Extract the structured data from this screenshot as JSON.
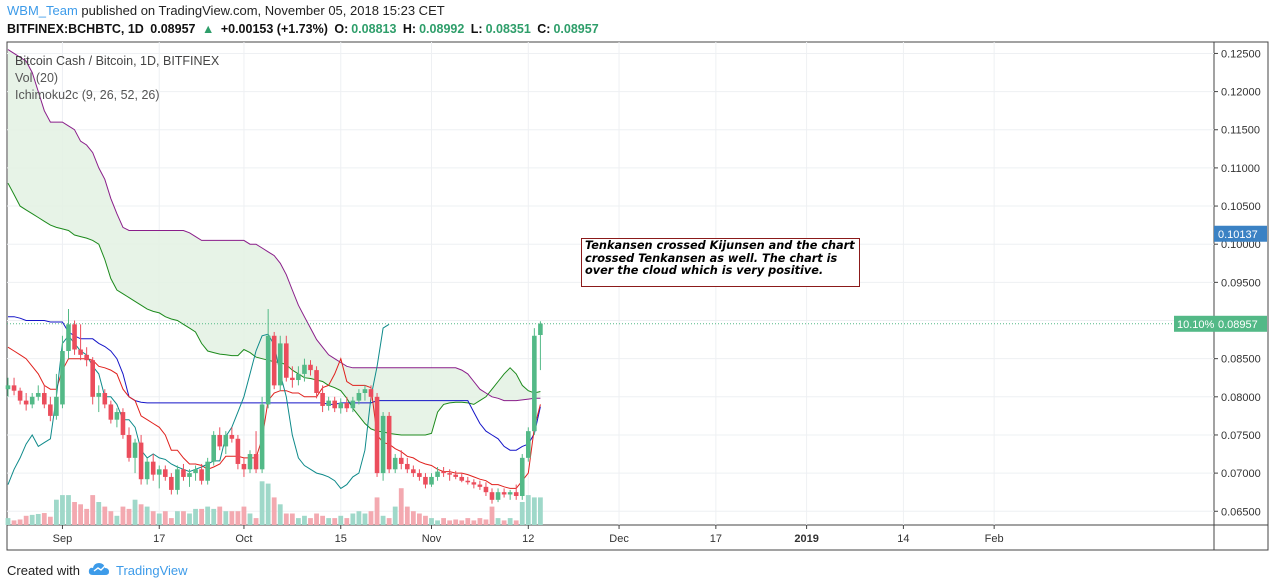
{
  "header": {
    "user": "WBM_Team",
    "published": "published on TradingView.com, November 05, 2018 15:23 CET"
  },
  "quote": {
    "symbol": "BITFINEX:BCHBTC, 1D",
    "last": "0.08957",
    "arrow": "▲",
    "change": "+0.00153 (+1.73%)",
    "o_label": "O:",
    "o": "0.08813",
    "h_label": "H:",
    "h": "0.08992",
    "l_label": "L:",
    "l": "0.08351",
    "c_label": "C:",
    "c": "0.08957"
  },
  "legend": {
    "title": "Bitcoin Cash / Bitcoin, 1D, BITFINEX",
    "vol": "Vol (20)",
    "ichimoku": "Ichimoku2c (9, 26, 52, 26)"
  },
  "annotation": "Tenkansen crossed Kijunsen and the chart crossed Tenkansen as well. The chart is over the cloud which is very positive.",
  "footer": {
    "created": "Created with",
    "brand": "TradingView"
  },
  "colors": {
    "up": "#53b987",
    "down": "#eb4d5c",
    "vol_up": "#9fd8c9",
    "vol_down": "#f3a9b0",
    "tenkan": "#e0201c",
    "kijun": "#1515c8",
    "chikou": "#0e8a8a",
    "span_a": "#1c8a1c",
    "span_b": "#8a1e8a",
    "cloud": "#e3f1e3",
    "price_tag": "#53b987",
    "level_tag": "#3b82c4"
  },
  "chart_data": {
    "type": "candlestick",
    "y_ticks": [
      "0.12500",
      "0.12000",
      "0.11500",
      "0.11000",
      "0.10500",
      "0.10000",
      "0.09500",
      "0.09000",
      "0.08500",
      "0.08000",
      "0.07500",
      "0.07000",
      "0.06500"
    ],
    "ylim": [
      0.0632,
      0.1265
    ],
    "x_ticks": [
      "Sep",
      "17",
      "Oct",
      "15",
      "Nov",
      "12",
      "Dec",
      "17",
      "2019",
      "14",
      "Feb"
    ],
    "x_tick_days": [
      9,
      25,
      39,
      55,
      70,
      86,
      101,
      117,
      132,
      148,
      163
    ],
    "price_tag": {
      "pct": "10.10%",
      "value": "0.08957"
    },
    "level_tag": {
      "value": "0.10137"
    },
    "candles": [
      {
        "o": 0.081,
        "h": 0.0825,
        "l": 0.08,
        "c": 0.0815
      },
      {
        "o": 0.0815,
        "h": 0.0825,
        "l": 0.0802,
        "c": 0.0808
      },
      {
        "o": 0.0808,
        "h": 0.0812,
        "l": 0.079,
        "c": 0.0795
      },
      {
        "o": 0.0795,
        "h": 0.0805,
        "l": 0.0782,
        "c": 0.079
      },
      {
        "o": 0.079,
        "h": 0.0805,
        "l": 0.0785,
        "c": 0.08
      },
      {
        "o": 0.08,
        "h": 0.0815,
        "l": 0.0795,
        "c": 0.0805
      },
      {
        "o": 0.0805,
        "h": 0.0815,
        "l": 0.0785,
        "c": 0.079
      },
      {
        "o": 0.079,
        "h": 0.08,
        "l": 0.0768,
        "c": 0.0775
      },
      {
        "o": 0.0775,
        "h": 0.083,
        "l": 0.077,
        "c": 0.08
      },
      {
        "o": 0.079,
        "h": 0.088,
        "l": 0.0785,
        "c": 0.086
      },
      {
        "o": 0.086,
        "h": 0.0915,
        "l": 0.085,
        "c": 0.0895
      },
      {
        "o": 0.0895,
        "h": 0.09,
        "l": 0.0855,
        "c": 0.0862
      },
      {
        "o": 0.0862,
        "h": 0.0895,
        "l": 0.0848,
        "c": 0.0855
      },
      {
        "o": 0.0855,
        "h": 0.0865,
        "l": 0.084,
        "c": 0.0848
      },
      {
        "o": 0.0848,
        "h": 0.0852,
        "l": 0.079,
        "c": 0.08
      },
      {
        "o": 0.08,
        "h": 0.0815,
        "l": 0.078,
        "c": 0.0805
      },
      {
        "o": 0.0805,
        "h": 0.081,
        "l": 0.0785,
        "c": 0.079
      },
      {
        "o": 0.079,
        "h": 0.0795,
        "l": 0.0765,
        "c": 0.077
      },
      {
        "o": 0.077,
        "h": 0.0785,
        "l": 0.076,
        "c": 0.078
      },
      {
        "o": 0.078,
        "h": 0.0785,
        "l": 0.0745,
        "c": 0.075
      },
      {
        "o": 0.075,
        "h": 0.076,
        "l": 0.0715,
        "c": 0.072
      },
      {
        "o": 0.072,
        "h": 0.0745,
        "l": 0.07,
        "c": 0.074
      },
      {
        "o": 0.074,
        "h": 0.075,
        "l": 0.0685,
        "c": 0.0692
      },
      {
        "o": 0.0692,
        "h": 0.072,
        "l": 0.0685,
        "c": 0.0715
      },
      {
        "o": 0.0715,
        "h": 0.0725,
        "l": 0.069,
        "c": 0.0698
      },
      {
        "o": 0.0698,
        "h": 0.071,
        "l": 0.068,
        "c": 0.0705
      },
      {
        "o": 0.0705,
        "h": 0.071,
        "l": 0.069,
        "c": 0.0695
      },
      {
        "o": 0.0695,
        "h": 0.07,
        "l": 0.0672,
        "c": 0.0678
      },
      {
        "o": 0.0678,
        "h": 0.071,
        "l": 0.0672,
        "c": 0.0705
      },
      {
        "o": 0.0705,
        "h": 0.0712,
        "l": 0.069,
        "c": 0.0695
      },
      {
        "o": 0.0695,
        "h": 0.0705,
        "l": 0.0682,
        "c": 0.07
      },
      {
        "o": 0.07,
        "h": 0.071,
        "l": 0.069,
        "c": 0.0705
      },
      {
        "o": 0.0705,
        "h": 0.0712,
        "l": 0.0685,
        "c": 0.069
      },
      {
        "o": 0.069,
        "h": 0.072,
        "l": 0.0685,
        "c": 0.0715
      },
      {
        "o": 0.0715,
        "h": 0.0755,
        "l": 0.071,
        "c": 0.075
      },
      {
        "o": 0.075,
        "h": 0.076,
        "l": 0.073,
        "c": 0.0735
      },
      {
        "o": 0.0735,
        "h": 0.0755,
        "l": 0.0725,
        "c": 0.075
      },
      {
        "o": 0.075,
        "h": 0.076,
        "l": 0.074,
        "c": 0.0745
      },
      {
        "o": 0.0745,
        "h": 0.075,
        "l": 0.0705,
        "c": 0.0712
      },
      {
        "o": 0.0712,
        "h": 0.072,
        "l": 0.0695,
        "c": 0.0705
      },
      {
        "o": 0.0705,
        "h": 0.073,
        "l": 0.07,
        "c": 0.0725
      },
      {
        "o": 0.0725,
        "h": 0.0755,
        "l": 0.07,
        "c": 0.0705
      },
      {
        "o": 0.0705,
        "h": 0.08,
        "l": 0.07,
        "c": 0.079
      },
      {
        "o": 0.079,
        "h": 0.0915,
        "l": 0.0785,
        "c": 0.088
      },
      {
        "o": 0.088,
        "h": 0.0885,
        "l": 0.081,
        "c": 0.0815
      },
      {
        "o": 0.0815,
        "h": 0.088,
        "l": 0.0808,
        "c": 0.087
      },
      {
        "o": 0.087,
        "h": 0.088,
        "l": 0.082,
        "c": 0.0825
      },
      {
        "o": 0.0825,
        "h": 0.084,
        "l": 0.0812,
        "c": 0.0822
      },
      {
        "o": 0.0822,
        "h": 0.084,
        "l": 0.0815,
        "c": 0.083
      },
      {
        "o": 0.083,
        "h": 0.085,
        "l": 0.082,
        "c": 0.0842
      },
      {
        "o": 0.0842,
        "h": 0.0848,
        "l": 0.0828,
        "c": 0.0835
      },
      {
        "o": 0.0835,
        "h": 0.084,
        "l": 0.0798,
        "c": 0.0805
      },
      {
        "o": 0.0805,
        "h": 0.0815,
        "l": 0.078,
        "c": 0.0788
      },
      {
        "o": 0.0788,
        "h": 0.08,
        "l": 0.0782,
        "c": 0.0795
      },
      {
        "o": 0.0795,
        "h": 0.08,
        "l": 0.078,
        "c": 0.0785
      },
      {
        "o": 0.0785,
        "h": 0.0798,
        "l": 0.0778,
        "c": 0.0792
      },
      {
        "o": 0.0792,
        "h": 0.08,
        "l": 0.078,
        "c": 0.0785
      },
      {
        "o": 0.0785,
        "h": 0.08,
        "l": 0.078,
        "c": 0.0795
      },
      {
        "o": 0.0795,
        "h": 0.081,
        "l": 0.079,
        "c": 0.0805
      },
      {
        "o": 0.0805,
        "h": 0.0815,
        "l": 0.0795,
        "c": 0.081
      },
      {
        "o": 0.081,
        "h": 0.0815,
        "l": 0.0795,
        "c": 0.08
      },
      {
        "o": 0.08,
        "h": 0.0805,
        "l": 0.0695,
        "c": 0.07
      },
      {
        "o": 0.07,
        "h": 0.078,
        "l": 0.069,
        "c": 0.0775
      },
      {
        "o": 0.0775,
        "h": 0.078,
        "l": 0.07,
        "c": 0.0705
      },
      {
        "o": 0.0705,
        "h": 0.0725,
        "l": 0.07,
        "c": 0.072
      },
      {
        "o": 0.072,
        "h": 0.073,
        "l": 0.0705,
        "c": 0.0712
      },
      {
        "o": 0.0712,
        "h": 0.072,
        "l": 0.07,
        "c": 0.0705
      },
      {
        "o": 0.0705,
        "h": 0.071,
        "l": 0.0695,
        "c": 0.07
      },
      {
        "o": 0.07,
        "h": 0.0705,
        "l": 0.069,
        "c": 0.0695
      },
      {
        "o": 0.0695,
        "h": 0.07,
        "l": 0.068,
        "c": 0.0685
      },
      {
        "o": 0.0685,
        "h": 0.07,
        "l": 0.0682,
        "c": 0.0695
      },
      {
        "o": 0.0695,
        "h": 0.0708,
        "l": 0.069,
        "c": 0.0702
      },
      {
        "o": 0.0702,
        "h": 0.0708,
        "l": 0.0695,
        "c": 0.07
      },
      {
        "o": 0.07,
        "h": 0.0705,
        "l": 0.069,
        "c": 0.0698
      },
      {
        "o": 0.0698,
        "h": 0.0703,
        "l": 0.0692,
        "c": 0.0695
      },
      {
        "o": 0.0695,
        "h": 0.07,
        "l": 0.0688,
        "c": 0.069
      },
      {
        "o": 0.069,
        "h": 0.0695,
        "l": 0.0685,
        "c": 0.0688
      },
      {
        "o": 0.0688,
        "h": 0.0692,
        "l": 0.068,
        "c": 0.0685
      },
      {
        "o": 0.0685,
        "h": 0.069,
        "l": 0.0678,
        "c": 0.0682
      },
      {
        "o": 0.0682,
        "h": 0.0688,
        "l": 0.067,
        "c": 0.0675
      },
      {
        "o": 0.0675,
        "h": 0.068,
        "l": 0.066,
        "c": 0.0665
      },
      {
        "o": 0.0665,
        "h": 0.068,
        "l": 0.0662,
        "c": 0.0675
      },
      {
        "o": 0.0675,
        "h": 0.068,
        "l": 0.0668,
        "c": 0.0672
      },
      {
        "o": 0.0672,
        "h": 0.0678,
        "l": 0.0665,
        "c": 0.0675
      },
      {
        "o": 0.0675,
        "h": 0.0685,
        "l": 0.0665,
        "c": 0.067
      },
      {
        "o": 0.067,
        "h": 0.0725,
        "l": 0.0665,
        "c": 0.072
      },
      {
        "o": 0.072,
        "h": 0.076,
        "l": 0.0715,
        "c": 0.0755
      },
      {
        "o": 0.0755,
        "h": 0.089,
        "l": 0.075,
        "c": 0.088
      },
      {
        "o": 0.0881,
        "h": 0.0899,
        "l": 0.0835,
        "c": 0.0896
      }
    ],
    "volume": [
      1.5,
      1.0,
      1.2,
      2.0,
      2.2,
      2.4,
      2.6,
      1.8,
      5.5,
      6.5,
      6.5,
      5.0,
      4.5,
      3.5,
      6.5,
      5.0,
      4.0,
      3.0,
      2.0,
      4.0,
      3.5,
      5.5,
      4.5,
      4.0,
      3.0,
      2.5,
      3.0,
      1.5,
      3.0,
      3.0,
      2.5,
      3.5,
      3.5,
      4.0,
      3.5,
      4.0,
      3.0,
      3.0,
      3.0,
      4.0,
      2.5,
      1.5,
      9.5,
      9.0,
      6.0,
      4.5,
      2.5,
      2.5,
      1.5,
      2.0,
      1.5,
      2.5,
      2.0,
      1.5,
      1.5,
      2.0,
      1.5,
      2.5,
      3.0,
      2.5,
      3.0,
      6.0,
      2.0,
      1.5,
      4.0,
      8.0,
      4.0,
      3.0,
      2.5,
      2.0,
      1.5,
      1.0,
      1.5,
      1.0,
      1.2,
      1.0,
      1.5,
      1.0,
      1.5,
      1.2,
      4.0,
      1.5,
      1.0,
      1.5,
      1.0,
      5.0,
      6.5,
      6.0,
      6.0
    ],
    "tenkan": [
      0.0865,
      0.086,
      0.0855,
      0.085,
      0.084,
      0.083,
      0.0815,
      0.081,
      0.081,
      0.0835,
      0.085,
      0.085,
      0.085,
      0.085,
      0.0848,
      0.084,
      0.0838,
      0.0835,
      0.083,
      0.081,
      0.08,
      0.0795,
      0.0775,
      0.077,
      0.0765,
      0.076,
      0.075,
      0.073,
      0.073,
      0.072,
      0.0712,
      0.0712,
      0.071,
      0.0705,
      0.0708,
      0.0712,
      0.0722,
      0.0722,
      0.0722,
      0.072,
      0.072,
      0.072,
      0.0745,
      0.0795,
      0.0805,
      0.0808,
      0.0808,
      0.0805,
      0.0805,
      0.08,
      0.08,
      0.08,
      0.0812,
      0.0815,
      0.083,
      0.085,
      0.082,
      0.0815,
      0.0815,
      0.0815,
      0.0812,
      0.075,
      0.074,
      0.0738,
      0.0732,
      0.0728,
      0.0722,
      0.072,
      0.0715,
      0.0712,
      0.071,
      0.0705,
      0.0702,
      0.0702,
      0.07,
      0.07,
      0.0698,
      0.0695,
      0.0692,
      0.069,
      0.0685,
      0.0685,
      0.0682,
      0.068,
      0.068,
      0.069,
      0.07,
      0.076,
      0.079
    ],
    "kijun": [
      0.0905,
      0.0905,
      0.0903,
      0.09,
      0.09,
      0.09,
      0.09,
      0.0898,
      0.0898,
      0.0898,
      0.0885,
      0.088,
      0.0876,
      0.0876,
      0.0876,
      0.087,
      0.0866,
      0.086,
      0.085,
      0.083,
      0.08,
      0.0795,
      0.0793,
      0.0792,
      0.0792,
      0.0792,
      0.0792,
      0.0792,
      0.0792,
      0.0792,
      0.0792,
      0.0792,
      0.0792,
      0.0792,
      0.0792,
      0.0792,
      0.0792,
      0.0792,
      0.0792,
      0.0792,
      0.0792,
      0.0792,
      0.0792,
      0.0792,
      0.0792,
      0.0792,
      0.0792,
      0.0792,
      0.0792,
      0.0792,
      0.0792,
      0.0792,
      0.0792,
      0.079,
      0.079,
      0.0792,
      0.0792,
      0.0792,
      0.0792,
      0.0792,
      0.0792,
      0.0795,
      0.0795,
      0.0795,
      0.0795,
      0.0795,
      0.0795,
      0.0795,
      0.0795,
      0.0795,
      0.0795,
      0.0795,
      0.0795,
      0.0795,
      0.0795,
      0.0795,
      0.0795,
      0.078,
      0.0765,
      0.0755,
      0.075,
      0.0745,
      0.0735,
      0.073,
      0.073,
      0.0735,
      0.0738,
      0.0752,
      0.0787
    ],
    "chikou": [
      0.0685,
      0.0705,
      0.072,
      0.0738,
      0.075,
      0.0735,
      0.074,
      0.0745,
      0.08,
      0.087,
      0.088,
      0.087,
      0.086,
      0.0855,
      0.084,
      0.083,
      0.08,
      0.08,
      0.079,
      0.077,
      0.077,
      0.076,
      0.073,
      0.072,
      0.0725,
      0.072,
      0.0718,
      0.0712,
      0.0708,
      0.0705,
      0.0702,
      0.0705,
      0.0708,
      0.0712,
      0.0716,
      0.0716,
      0.0748,
      0.076,
      0.078,
      0.08,
      0.083,
      0.086,
      0.088,
      0.0882,
      0.0868,
      0.083,
      0.08,
      0.075,
      0.072,
      0.071,
      0.0705,
      0.07,
      0.0698,
      0.0695,
      0.069,
      0.068,
      0.0685,
      0.0695,
      0.07,
      0.073,
      0.08,
      0.084,
      0.089,
      0.0895
    ],
    "span_a": [
      0.108,
      0.1065,
      0.105,
      0.1045,
      0.104,
      0.1035,
      0.103,
      0.1025,
      0.1022,
      0.102,
      0.1018,
      0.1012,
      0.101,
      0.1008,
      0.1005,
      0.1,
      0.098,
      0.0955,
      0.094,
      0.0935,
      0.093,
      0.0925,
      0.092,
      0.0915,
      0.0912,
      0.091,
      0.0905,
      0.0902,
      0.09,
      0.0895,
      0.089,
      0.0885,
      0.087,
      0.086,
      0.0858,
      0.0856,
      0.0855,
      0.0854,
      0.0854,
      0.0862,
      0.0858,
      0.0852,
      0.085,
      0.0848,
      0.0846,
      0.0845,
      0.0842,
      0.0835,
      0.083,
      0.0825,
      0.0824,
      0.0822,
      0.082,
      0.0815,
      0.0812,
      0.0808,
      0.0798,
      0.0785,
      0.0775,
      0.0765,
      0.0758,
      0.0755,
      0.0754,
      0.0752,
      0.0751,
      0.075,
      0.075,
      0.075,
      0.075,
      0.075,
      0.0752,
      0.078,
      0.079,
      0.0792,
      0.0793,
      0.0793,
      0.0792,
      0.079,
      0.0795,
      0.08,
      0.081,
      0.082,
      0.083,
      0.0838,
      0.083,
      0.0815,
      0.0808,
      0.0805,
      0.0807
    ],
    "span_b": [
      0.1255,
      0.125,
      0.1245,
      0.124,
      0.1225,
      0.12,
      0.1175,
      0.116,
      0.116,
      0.116,
      0.1155,
      0.115,
      0.1135,
      0.113,
      0.112,
      0.11,
      0.1085,
      0.106,
      0.104,
      0.1022,
      0.1018,
      0.1018,
      0.1018,
      0.1018,
      0.1018,
      0.1018,
      0.1018,
      0.1018,
      0.1018,
      0.1018,
      0.1015,
      0.101,
      0.1005,
      0.1005,
      0.1005,
      0.1005,
      0.1005,
      0.1005,
      0.1005,
      0.1005,
      0.1,
      0.1,
      0.0995,
      0.099,
      0.0985,
      0.0975,
      0.096,
      0.094,
      0.092,
      0.0905,
      0.089,
      0.0875,
      0.0865,
      0.0855,
      0.085,
      0.0845,
      0.084,
      0.0838,
      0.0838,
      0.0838,
      0.0838,
      0.0838,
      0.0838,
      0.0838,
      0.0838,
      0.0838,
      0.0838,
      0.0838,
      0.0838,
      0.0838,
      0.0838,
      0.0838,
      0.0838,
      0.0838,
      0.0838,
      0.0835,
      0.083,
      0.082,
      0.081,
      0.0805,
      0.08,
      0.0798,
      0.0795,
      0.0795,
      0.0795,
      0.0796,
      0.0797,
      0.0798,
      0.0798
    ]
  }
}
